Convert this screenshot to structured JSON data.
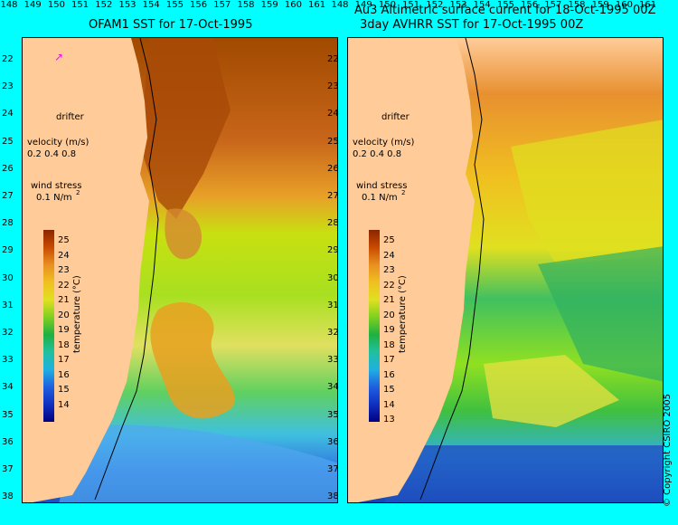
{
  "left_panel": {
    "title": "OFAM1 SST for 17-Oct-1995",
    "drifter_label": "drifter",
    "velocity_label": "velocity (m/s)",
    "velocity_ticks": "0.2 0.4 0.8",
    "wind_label": "wind stress",
    "wind_value": "0.1 N/m",
    "colorbar_ticks": [
      "25",
      "24",
      "23",
      "22",
      "21",
      "20",
      "19",
      "18",
      "17",
      "16",
      "15",
      "14"
    ],
    "colorbar_label": "temperature (°C)"
  },
  "right_panel": {
    "title_line1": "Au3 Altimetric surface current for 18-Oct-1995 00Z",
    "title_line2": "3day AVHRR SST for 17-Oct-1995 00Z",
    "drifter_label": "drifter",
    "velocity_label": "velocity (m/s)",
    "velocity_ticks": "0.2 0.4 0.8",
    "wind_label": "wind stress",
    "wind_value": "0.1 N/m",
    "colorbar_ticks": [
      "25",
      "24",
      "23",
      "22",
      "21",
      "20",
      "19",
      "18",
      "17",
      "16",
      "15",
      "14",
      "13"
    ],
    "colorbar_label": "temperature (°C)",
    "copyright": "© Copyright CSIRO 2005"
  },
  "lat_labels": [
    "22",
    "23",
    "24",
    "25",
    "26",
    "27",
    "28",
    "29",
    "30",
    "31",
    "32",
    "33",
    "34",
    "35",
    "36",
    "37",
    "38"
  ],
  "left_lon_labels": [
    "148",
    "149",
    "150",
    "151",
    "152",
    "153",
    "154",
    "155",
    "156",
    "157",
    "158",
    "159",
    "160",
    "161"
  ],
  "right_lon_labels": [
    "148",
    "149",
    "150",
    "151",
    "152",
    "153",
    "154",
    "155",
    "156",
    "157",
    "158",
    "159",
    "160",
    "161"
  ],
  "colors": {
    "background": "#00ffff",
    "land": "#ffcc99",
    "arrow": "#000000",
    "wind_arrow": "#ff00ff"
  }
}
